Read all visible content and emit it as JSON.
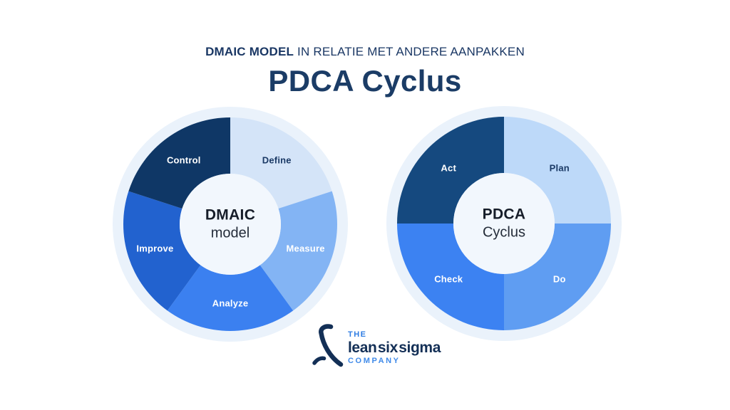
{
  "header": {
    "subtitle_bold": "DMAIC MODEL",
    "subtitle_rest": " IN RELATIE MET ANDERE AANPAKKEN",
    "title": "PDCA Cyclus"
  },
  "colors": {
    "background": "#FFFFFF",
    "subtitle_text": "#1A3764",
    "title_text": "#1B3C66",
    "halo": "#EAF2FB",
    "center_fill": "#F2F7FD",
    "center_title_text": "#161D29",
    "center_subtitle_text": "#242C39"
  },
  "donuts": [
    {
      "id": "dmaic",
      "center_title": "DMAIC",
      "center_subtitle": "model",
      "label_radius": 111,
      "segments": [
        {
          "label": "Define",
          "start": 0,
          "end": 72,
          "color": "#D4E4F8",
          "label_color": "#1B3A66"
        },
        {
          "label": "Measure",
          "start": 72,
          "end": 144,
          "color": "#83B4F4",
          "label_color": "#FFFFFF"
        },
        {
          "label": "Analyze",
          "start": 144,
          "end": 216,
          "color": "#3B80F0",
          "label_color": "#FFFFFF"
        },
        {
          "label": "Improve",
          "start": 216,
          "end": 288,
          "color": "#2262CF",
          "label_color": "#FFFFFF"
        },
        {
          "label": "Control",
          "start": 288,
          "end": 360,
          "color": "#0F3766",
          "label_color": "#FFFFFF"
        }
      ]
    },
    {
      "id": "pdca",
      "center_title": "PDCA",
      "center_subtitle": "Cyclus",
      "label_radius": 110,
      "segments": [
        {
          "label": "Plan",
          "start": 0,
          "end": 90,
          "color": "#BDD9F9",
          "label_color": "#1B3A66"
        },
        {
          "label": "Do",
          "start": 90,
          "end": 180,
          "color": "#5F9DF2",
          "label_color": "#FFFFFF"
        },
        {
          "label": "Check",
          "start": 180,
          "end": 270,
          "color": "#3C82F2",
          "label_color": "#FFFFFF"
        },
        {
          "label": "Act",
          "start": 270,
          "end": 360,
          "color": "#15497F",
          "label_color": "#FFFFFF"
        }
      ]
    }
  ],
  "logo": {
    "the": "THE",
    "brand": "lean six sigma",
    "company": "COMPANY"
  }
}
